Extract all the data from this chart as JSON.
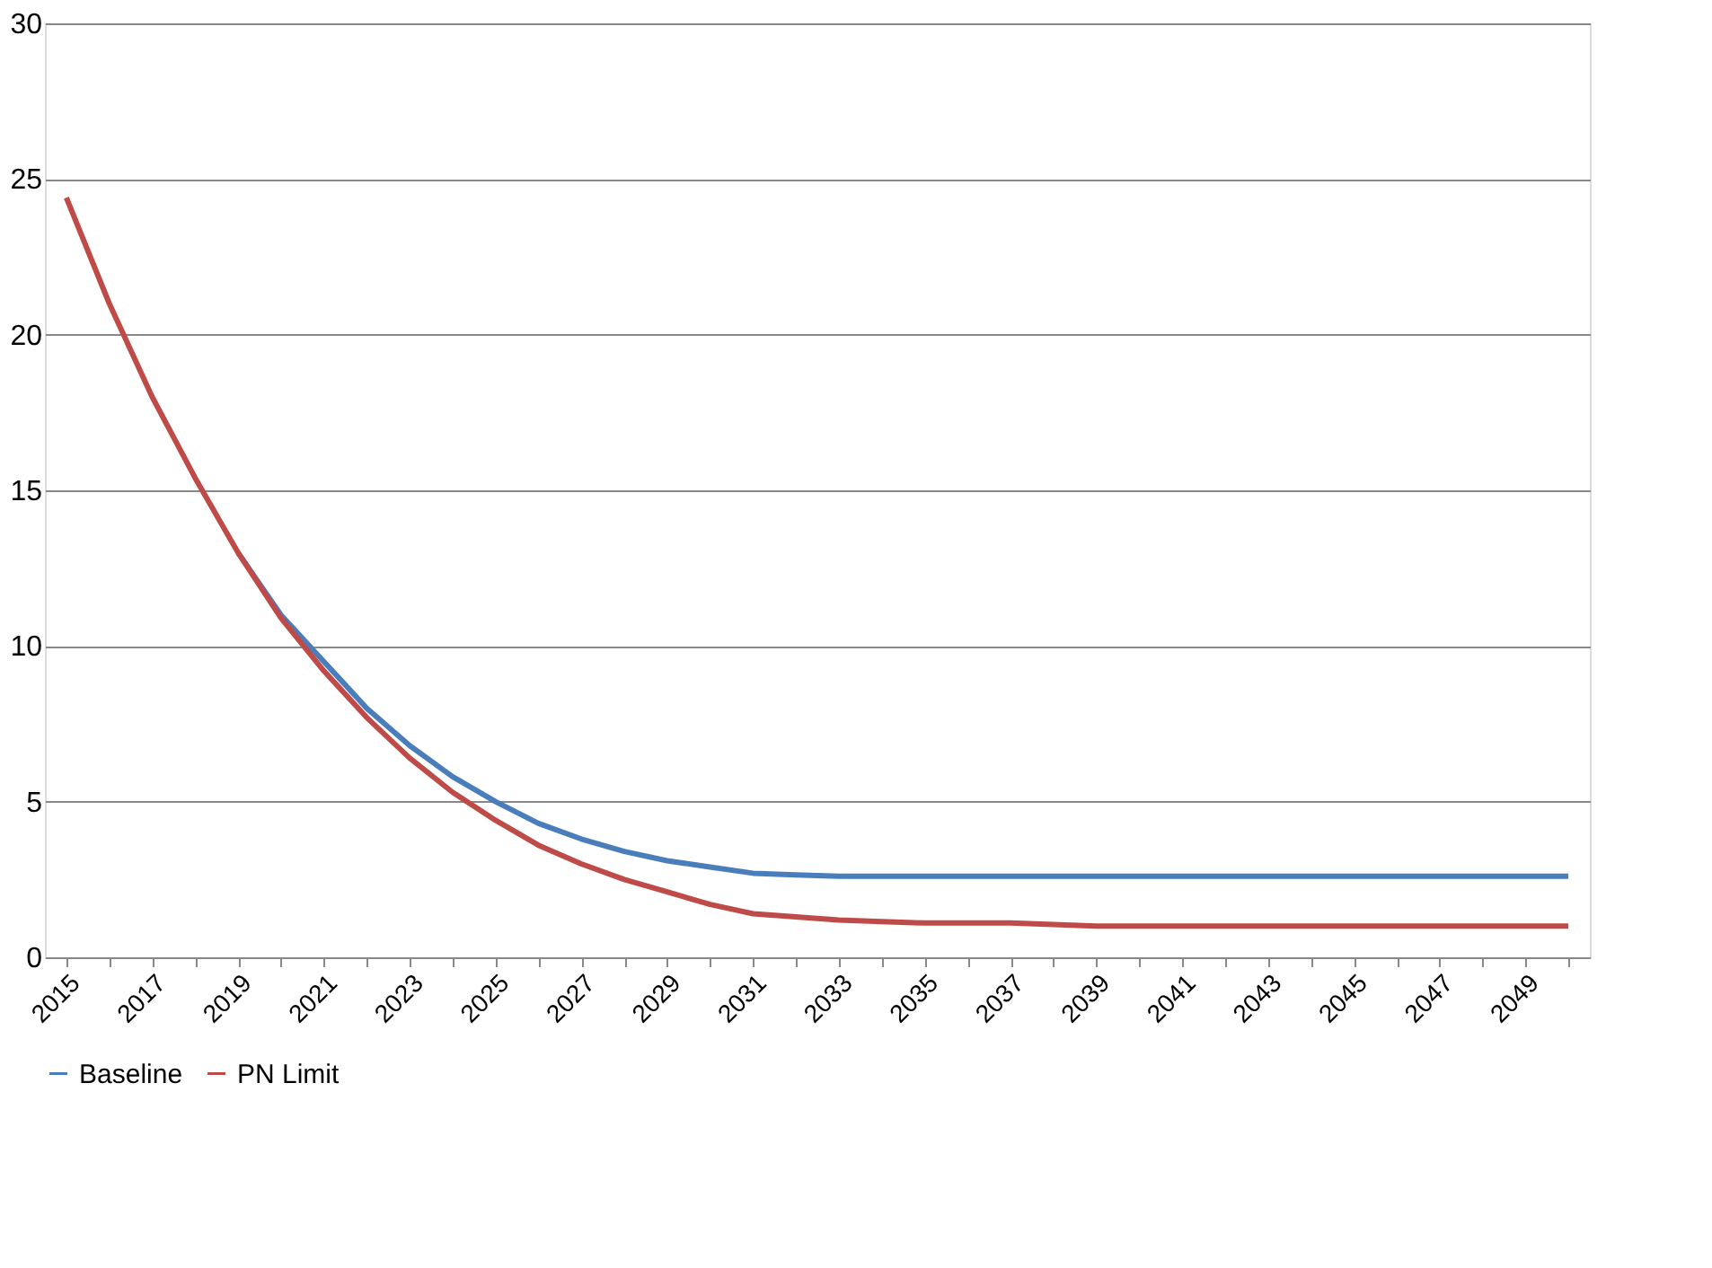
{
  "chart_data": {
    "type": "line",
    "categories": [
      "2015",
      null,
      "2017",
      null,
      "2019",
      null,
      "2021",
      null,
      "2023",
      null,
      "2025",
      null,
      "2027",
      null,
      "2029",
      null,
      "2031",
      null,
      "2033",
      null,
      "2035",
      null,
      "2037",
      null,
      "2039",
      null,
      "2041",
      null,
      "2043",
      null,
      "2045",
      null,
      "2047",
      null,
      "2049",
      null
    ],
    "series": [
      {
        "name": "Baseline",
        "color": "#4a7ebb",
        "values": [
          null,
          null,
          null,
          null,
          13,
          11,
          9.5,
          8.0,
          6.8,
          5.8,
          5.0,
          4.3,
          3.8,
          3.4,
          3.1,
          2.9,
          2.7,
          2.65,
          2.6,
          2.6,
          2.6,
          2.6,
          2.6,
          2.6,
          2.6,
          2.6,
          2.6,
          2.6,
          2.6,
          2.6,
          2.6,
          2.6,
          2.6,
          2.6,
          2.6,
          2.6
        ]
      },
      {
        "name": "PN Limit",
        "color": "#be4b48",
        "values": [
          24.4,
          21,
          18,
          15.4,
          13,
          10.9,
          9.2,
          7.7,
          6.4,
          5.3,
          4.4,
          3.6,
          3.0,
          2.5,
          2.1,
          1.7,
          1.4,
          1.3,
          1.2,
          1.15,
          1.1,
          1.1,
          1.1,
          1.05,
          1.0,
          1.0,
          1.0,
          1.0,
          1.0,
          1.0,
          1.0,
          1.0,
          1.0,
          1.0,
          1.0,
          1.0
        ]
      }
    ],
    "ylim": [
      0,
      30
    ],
    "yticks": [
      0,
      5,
      10,
      15,
      20,
      25,
      30
    ],
    "grid": "y",
    "legend": "bottom",
    "marker": "none",
    "line_style": "solid"
  }
}
